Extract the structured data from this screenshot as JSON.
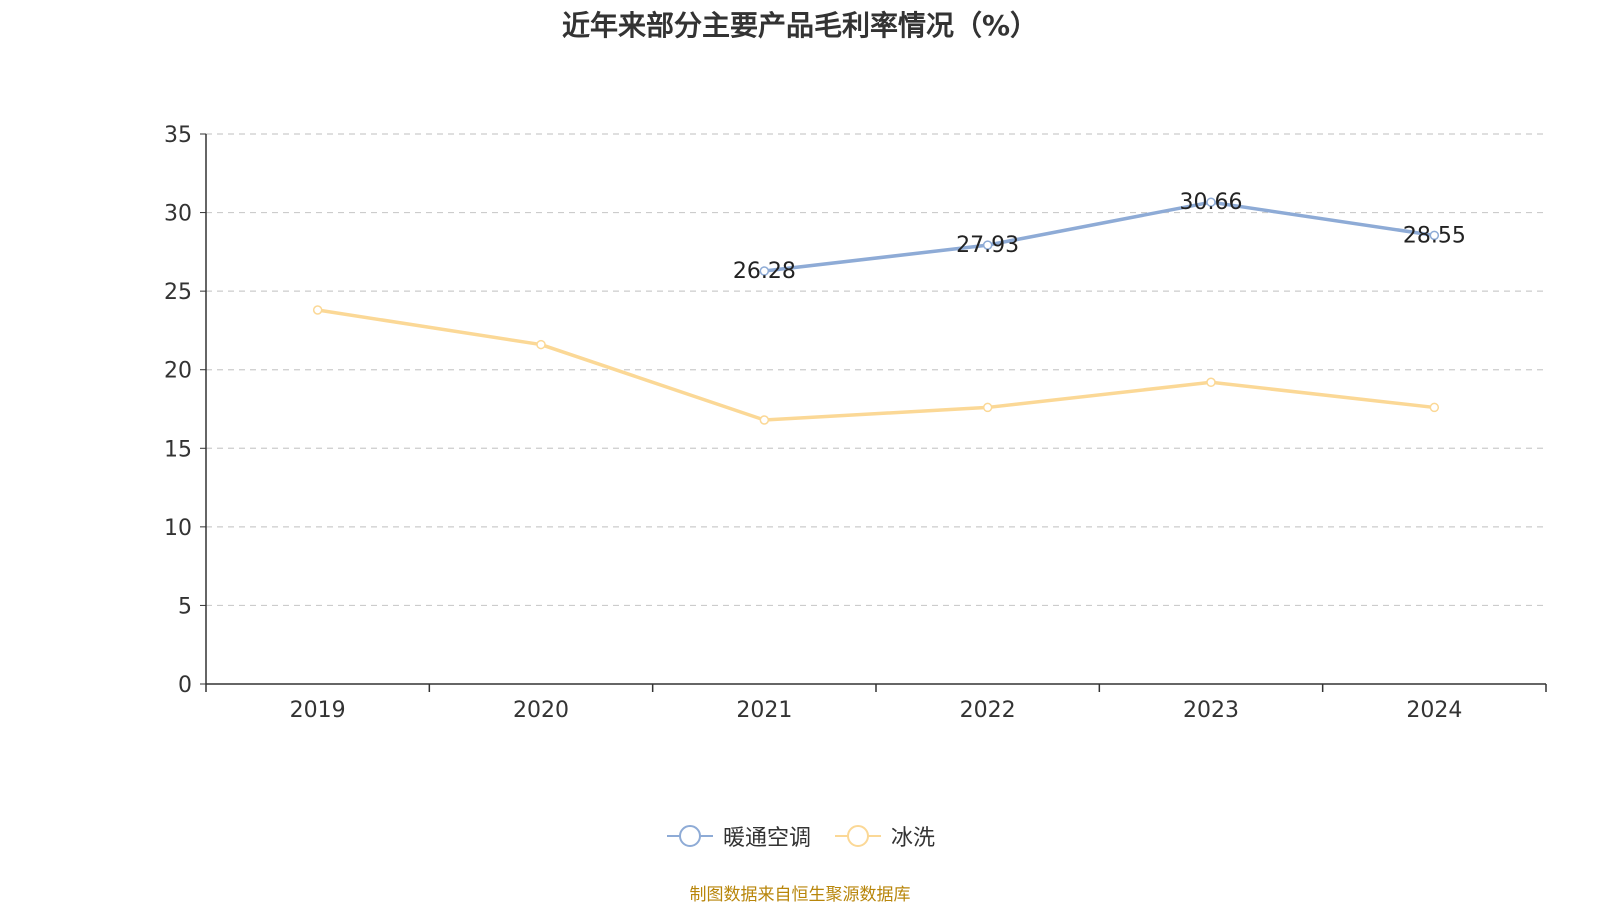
{
  "chart_data": {
    "type": "line",
    "title": "近年来部分主要产品毛利率情况（%）",
    "categories": [
      "2019",
      "2020",
      "2021",
      "2022",
      "2023",
      "2024"
    ],
    "series": [
      {
        "name": "暖通空调",
        "color": "#8eabd6",
        "values": [
          null,
          null,
          26.28,
          27.93,
          30.66,
          28.55
        ],
        "show_labels": true
      },
      {
        "name": "冰洗",
        "color": "#fbd896",
        "values": [
          23.8,
          21.6,
          16.8,
          17.6,
          19.2,
          17.6
        ],
        "show_labels": false
      }
    ],
    "ylim": [
      0,
      35
    ],
    "yticks": [
      0,
      5,
      10,
      15,
      20,
      25,
      30,
      35
    ],
    "grid": true,
    "legend": "bottom-center"
  },
  "source_note": "制图数据来自恒生聚源数据库"
}
